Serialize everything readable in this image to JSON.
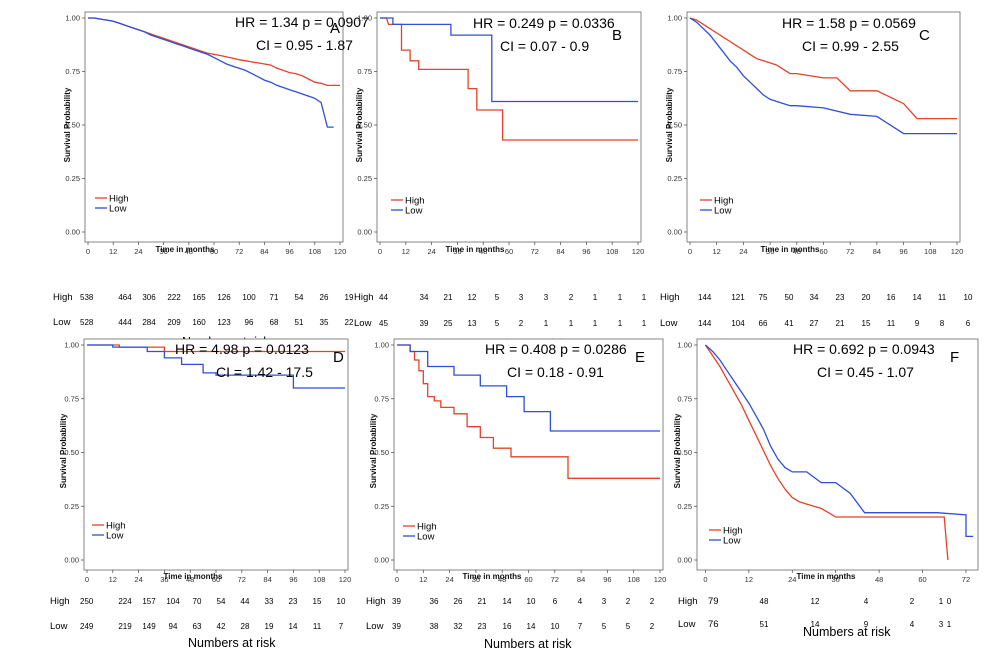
{
  "chart_data": [
    {
      "type": "line",
      "panel": "A",
      "stats": {
        "hr": "HR =  1.34 p = 0.0907",
        "ci": "CI =  0.95 - 1.87"
      },
      "xlabel": "Time in months",
      "ylabel": "Survival Probability",
      "xlim": [
        0,
        120
      ],
      "ylim": [
        0,
        1
      ],
      "x_ticks": [
        "0",
        "12",
        "24",
        "36",
        "48",
        "60",
        "72",
        "84",
        "96",
        "108",
        "120"
      ],
      "x_tick_values": [
        0,
        12,
        24,
        36,
        48,
        60,
        72,
        84,
        96,
        108,
        120
      ],
      "y_ticks": [
        "0.00",
        "0.25",
        "0.50",
        "0.75",
        "1.00"
      ],
      "series": [
        {
          "name": "High",
          "color": "#e8402a",
          "x": [
            0,
            3,
            6,
            9,
            12,
            15,
            18,
            21,
            24,
            27,
            30,
            33,
            36,
            39,
            42,
            45,
            48,
            51,
            54,
            57,
            60,
            63,
            66,
            69,
            72,
            75,
            78,
            81,
            84,
            87,
            90,
            93,
            96,
            99,
            102,
            105,
            108,
            111,
            114,
            117,
            120
          ],
          "y": [
            1.0,
            1.0,
            0.995,
            0.99,
            0.985,
            0.975,
            0.965,
            0.955,
            0.945,
            0.935,
            0.925,
            0.915,
            0.905,
            0.895,
            0.885,
            0.875,
            0.865,
            0.855,
            0.845,
            0.835,
            0.83,
            0.825,
            0.818,
            0.812,
            0.805,
            0.8,
            0.795,
            0.79,
            0.785,
            0.78,
            0.765,
            0.755,
            0.745,
            0.74,
            0.73,
            0.715,
            0.7,
            0.695,
            0.685,
            0.685,
            0.685
          ]
        },
        {
          "name": "Low",
          "color": "#2f4fd8",
          "x": [
            0,
            3,
            6,
            9,
            12,
            15,
            18,
            21,
            24,
            27,
            30,
            33,
            36,
            39,
            42,
            45,
            48,
            51,
            54,
            57,
            60,
            63,
            66,
            69,
            72,
            75,
            78,
            81,
            84,
            87,
            90,
            93,
            96,
            99,
            102,
            105,
            108,
            111,
            114,
            117
          ],
          "y": [
            1.0,
            1.0,
            0.995,
            0.99,
            0.985,
            0.975,
            0.965,
            0.955,
            0.945,
            0.935,
            0.92,
            0.91,
            0.9,
            0.89,
            0.88,
            0.87,
            0.86,
            0.85,
            0.84,
            0.83,
            0.815,
            0.8,
            0.785,
            0.775,
            0.765,
            0.755,
            0.74,
            0.725,
            0.71,
            0.7,
            0.685,
            0.675,
            0.665,
            0.655,
            0.645,
            0.635,
            0.625,
            0.605,
            0.49,
            0.49
          ]
        }
      ],
      "risk_table": {
        "title": "Numbers at risk",
        "rows": [
          {
            "label": "High",
            "first": "538",
            "values": [
              "464",
              "306",
              "222",
              "165",
              "126",
              "100",
              "71",
              "54",
              "26",
              "19"
            ]
          },
          {
            "label": "Low",
            "first": "528",
            "values": [
              "444",
              "284",
              "209",
              "160",
              "123",
              "96",
              "68",
              "51",
              "35",
              "22"
            ]
          }
        ]
      }
    },
    {
      "type": "line",
      "panel": "B",
      "stats": {
        "hr": "HR =  0.249 p = 0.0336",
        "ci": "CI =  0.07 - 0.9"
      },
      "xlabel": "Time in months",
      "ylabel": "Survival Probability",
      "xlim": [
        0,
        120
      ],
      "ylim": [
        0,
        1
      ],
      "x_ticks": [
        "0",
        "12",
        "24",
        "36",
        "48",
        "60",
        "72",
        "84",
        "96",
        "108",
        "120"
      ],
      "x_tick_values": [
        0,
        12,
        24,
        36,
        48,
        60,
        72,
        84,
        96,
        108,
        120
      ],
      "y_ticks": [
        "0.00",
        "0.25",
        "0.50",
        "0.75",
        "1.00"
      ],
      "series": [
        {
          "name": "High",
          "color": "#e8402a",
          "x": [
            0,
            3,
            4,
            10,
            10,
            14,
            14,
            18,
            18,
            41,
            41,
            45,
            45,
            57,
            57,
            120
          ],
          "y": [
            1.0,
            1.0,
            0.97,
            0.97,
            0.85,
            0.85,
            0.8,
            0.8,
            0.76,
            0.76,
            0.67,
            0.67,
            0.57,
            0.57,
            0.43,
            0.43
          ]
        },
        {
          "name": "Low",
          "color": "#2f4fd8",
          "x": [
            0,
            6,
            6,
            33,
            33,
            52,
            52,
            120
          ],
          "y": [
            1.0,
            1.0,
            0.97,
            0.97,
            0.92,
            0.92,
            0.61,
            0.61
          ]
        }
      ],
      "risk_table": {
        "title": "Numbers at risk",
        "rows": [
          {
            "label": "High",
            "first": "44",
            "values": [
              "34",
              "21",
              "12",
              "5",
              "3",
              "3",
              "2",
              "1",
              "1",
              "1"
            ]
          },
          {
            "label": "Low",
            "first": "45",
            "values": [
              "39",
              "25",
              "13",
              "5",
              "2",
              "1",
              "1",
              "1",
              "1",
              "1"
            ]
          }
        ]
      }
    },
    {
      "type": "line",
      "panel": "C",
      "stats": {
        "hr": "HR =  1.58 p = 0.0569",
        "ci": "CI =  0.99 - 2.55"
      },
      "xlabel": "Time in months",
      "ylabel": "Survival Probability",
      "xlim": [
        0,
        120
      ],
      "ylim": [
        0,
        1
      ],
      "x_ticks": [
        "0",
        "12",
        "24",
        "36",
        "48",
        "60",
        "72",
        "84",
        "96",
        "108",
        "120"
      ],
      "x_tick_values": [
        0,
        12,
        24,
        36,
        48,
        60,
        72,
        84,
        96,
        108,
        120
      ],
      "y_ticks": [
        "0.00",
        "0.25",
        "0.50",
        "0.75",
        "1.00"
      ],
      "series": [
        {
          "name": "High",
          "color": "#e8402a",
          "x": [
            0,
            3,
            6,
            9,
            12,
            15,
            18,
            21,
            24,
            27,
            30,
            33,
            36,
            39,
            42,
            45,
            48,
            60,
            66,
            72,
            84,
            96,
            102,
            108,
            120
          ],
          "y": [
            1.0,
            0.99,
            0.97,
            0.95,
            0.93,
            0.91,
            0.89,
            0.87,
            0.85,
            0.83,
            0.81,
            0.8,
            0.79,
            0.78,
            0.76,
            0.74,
            0.74,
            0.72,
            0.72,
            0.66,
            0.66,
            0.6,
            0.53,
            0.53,
            0.53
          ]
        },
        {
          "name": "Low",
          "color": "#2f4fd8",
          "x": [
            0,
            3,
            6,
            9,
            12,
            15,
            18,
            21,
            24,
            27,
            30,
            33,
            36,
            39,
            42,
            45,
            48,
            60,
            72,
            84,
            96,
            108,
            120
          ],
          "y": [
            1.0,
            0.98,
            0.95,
            0.92,
            0.88,
            0.84,
            0.8,
            0.77,
            0.73,
            0.7,
            0.67,
            0.64,
            0.62,
            0.61,
            0.6,
            0.59,
            0.59,
            0.58,
            0.55,
            0.54,
            0.46,
            0.46,
            0.46
          ]
        }
      ],
      "risk_table": {
        "title": "Numbers at risk",
        "rows": [
          {
            "label": "High",
            "first": "144",
            "values": [
              "121",
              "75",
              "50",
              "34",
              "23",
              "20",
              "16",
              "14",
              "11",
              "10"
            ]
          },
          {
            "label": "Low",
            "first": "144",
            "values": [
              "104",
              "66",
              "41",
              "27",
              "21",
              "15",
              "11",
              "9",
              "8",
              "6"
            ]
          }
        ]
      }
    },
    {
      "type": "line",
      "panel": "D",
      "stats": {
        "hr": "HR =  4.98 p = 0.0123",
        "ci": "CI =  1.42 - 17.5"
      },
      "xlabel": "Time in months",
      "ylabel": "Survival Probability",
      "xlim": [
        0,
        120
      ],
      "ylim": [
        0,
        1
      ],
      "x_ticks": [
        "0",
        "12",
        "24",
        "36",
        "48",
        "60",
        "72",
        "84",
        "96",
        "108",
        "120"
      ],
      "x_tick_values": [
        0,
        12,
        24,
        36,
        48,
        60,
        72,
        84,
        96,
        108,
        120
      ],
      "y_ticks": [
        "0.00",
        "0.25",
        "0.50",
        "0.75",
        "1.00"
      ],
      "series": [
        {
          "name": "High",
          "color": "#e8402a",
          "x": [
            0,
            15,
            15,
            36,
            36,
            120
          ],
          "y": [
            1.0,
            1.0,
            0.99,
            0.99,
            0.97,
            0.97
          ]
        },
        {
          "name": "Low",
          "color": "#2f4fd8",
          "x": [
            0,
            12,
            12,
            28,
            28,
            36,
            36,
            44,
            44,
            54,
            54,
            60,
            60,
            96,
            96,
            120
          ],
          "y": [
            1.0,
            1.0,
            0.99,
            0.99,
            0.97,
            0.97,
            0.94,
            0.94,
            0.91,
            0.91,
            0.87,
            0.87,
            0.86,
            0.86,
            0.8,
            0.8
          ]
        }
      ],
      "risk_table": {
        "title": "Numbers at risk",
        "rows": [
          {
            "label": "High",
            "first": "250",
            "values": [
              "224",
              "157",
              "104",
              "70",
              "54",
              "44",
              "33",
              "23",
              "15",
              "10"
            ]
          },
          {
            "label": "Low",
            "first": "249",
            "values": [
              "219",
              "149",
              "94",
              "63",
              "42",
              "28",
              "19",
              "14",
              "11",
              "7"
            ]
          }
        ]
      }
    },
    {
      "type": "line",
      "panel": "E",
      "stats": {
        "hr": "HR =  0.408 p = 0.0286",
        "ci": "CI =  0.18 - 0.91"
      },
      "xlabel": "Time in months",
      "ylabel": "Survival Probability",
      "xlim": [
        0,
        120
      ],
      "ylim": [
        0,
        1
      ],
      "x_ticks": [
        "0",
        "12",
        "24",
        "36",
        "48",
        "60",
        "72",
        "84",
        "96",
        "108",
        "120"
      ],
      "x_tick_values": [
        0,
        12,
        24,
        36,
        48,
        60,
        72,
        84,
        96,
        108,
        120
      ],
      "y_ticks": [
        "0.00",
        "0.25",
        "0.50",
        "0.75",
        "1.00"
      ],
      "series": [
        {
          "name": "High",
          "color": "#e8402a",
          "x": [
            0,
            6,
            6,
            8,
            8,
            10,
            10,
            12,
            12,
            14,
            14,
            17,
            17,
            20,
            20,
            26,
            26,
            32,
            32,
            38,
            38,
            44,
            44,
            52,
            52,
            78,
            78,
            120
          ],
          "y": [
            1.0,
            1.0,
            0.97,
            0.97,
            0.93,
            0.93,
            0.88,
            0.88,
            0.82,
            0.82,
            0.76,
            0.76,
            0.74,
            0.74,
            0.71,
            0.71,
            0.68,
            0.68,
            0.62,
            0.62,
            0.57,
            0.57,
            0.52,
            0.52,
            0.48,
            0.48,
            0.38,
            0.38
          ]
        },
        {
          "name": "Low",
          "color": "#2f4fd8",
          "x": [
            0,
            6,
            6,
            14,
            14,
            26,
            26,
            38,
            38,
            50,
            50,
            58,
            58,
            70,
            70,
            78,
            78,
            120
          ],
          "y": [
            1.0,
            1.0,
            0.97,
            0.97,
            0.9,
            0.9,
            0.86,
            0.86,
            0.81,
            0.81,
            0.76,
            0.76,
            0.69,
            0.69,
            0.6,
            0.6,
            0.6,
            0.6
          ]
        }
      ],
      "risk_table": {
        "title": "Numbers at risk",
        "rows": [
          {
            "label": "High",
            "first": "39",
            "values": [
              "36",
              "26",
              "21",
              "14",
              "10",
              "6",
              "4",
              "3",
              "2",
              "2"
            ]
          },
          {
            "label": "Low",
            "first": "39",
            "values": [
              "38",
              "32",
              "23",
              "16",
              "14",
              "10",
              "7",
              "5",
              "5",
              "2"
            ]
          }
        ]
      }
    },
    {
      "type": "line",
      "panel": "F",
      "stats": {
        "hr": "HR =  0.692 p = 0.0943",
        "ci": "CI =  0.45 - 1.07"
      },
      "xlabel": "Time in months",
      "ylabel": "Survival Probability",
      "xlim": [
        -1.5,
        74.5
      ],
      "ylim": [
        0,
        1
      ],
      "x_ticks": [
        "0",
        "12",
        "24",
        "36",
        "48",
        "60",
        "72"
      ],
      "x_tick_values": [
        0,
        12,
        24,
        36,
        48,
        60,
        72
      ],
      "y_ticks": [
        "0.00",
        "0.25",
        "0.50",
        "0.75",
        "1.00"
      ],
      "series": [
        {
          "name": "High",
          "color": "#e8402a",
          "x": [
            0,
            2,
            4,
            6,
            8,
            10,
            12,
            14,
            16,
            18,
            20,
            22,
            24,
            26,
            28,
            30,
            32,
            34,
            36,
            48,
            60,
            66,
            67
          ],
          "y": [
            1.0,
            0.95,
            0.9,
            0.84,
            0.78,
            0.72,
            0.65,
            0.58,
            0.51,
            0.44,
            0.38,
            0.33,
            0.29,
            0.27,
            0.26,
            0.25,
            0.24,
            0.22,
            0.2,
            0.2,
            0.2,
            0.2,
            0.0
          ]
        },
        {
          "name": "Low",
          "color": "#2f4fd8",
          "x": [
            0,
            2,
            4,
            6,
            8,
            10,
            12,
            14,
            16,
            18,
            20,
            22,
            24,
            28,
            32,
            36,
            40,
            44,
            48,
            56,
            64,
            72,
            72,
            74
          ],
          "y": [
            1.0,
            0.97,
            0.93,
            0.88,
            0.83,
            0.78,
            0.73,
            0.67,
            0.61,
            0.53,
            0.47,
            0.43,
            0.41,
            0.41,
            0.36,
            0.36,
            0.31,
            0.22,
            0.22,
            0.22,
            0.22,
            0.21,
            0.11,
            0.11
          ]
        }
      ],
      "risk_table": {
        "title": "Numbers at risk",
        "rows": [
          {
            "label": "High",
            "first": "79",
            "values": [
              "48",
              "12",
              "4",
              "2",
              "1",
              "0"
            ]
          },
          {
            "label": "Low",
            "first": "76",
            "values": [
              "51",
              "14",
              "9",
              "4",
              "3",
              "1"
            ]
          }
        ]
      }
    }
  ]
}
